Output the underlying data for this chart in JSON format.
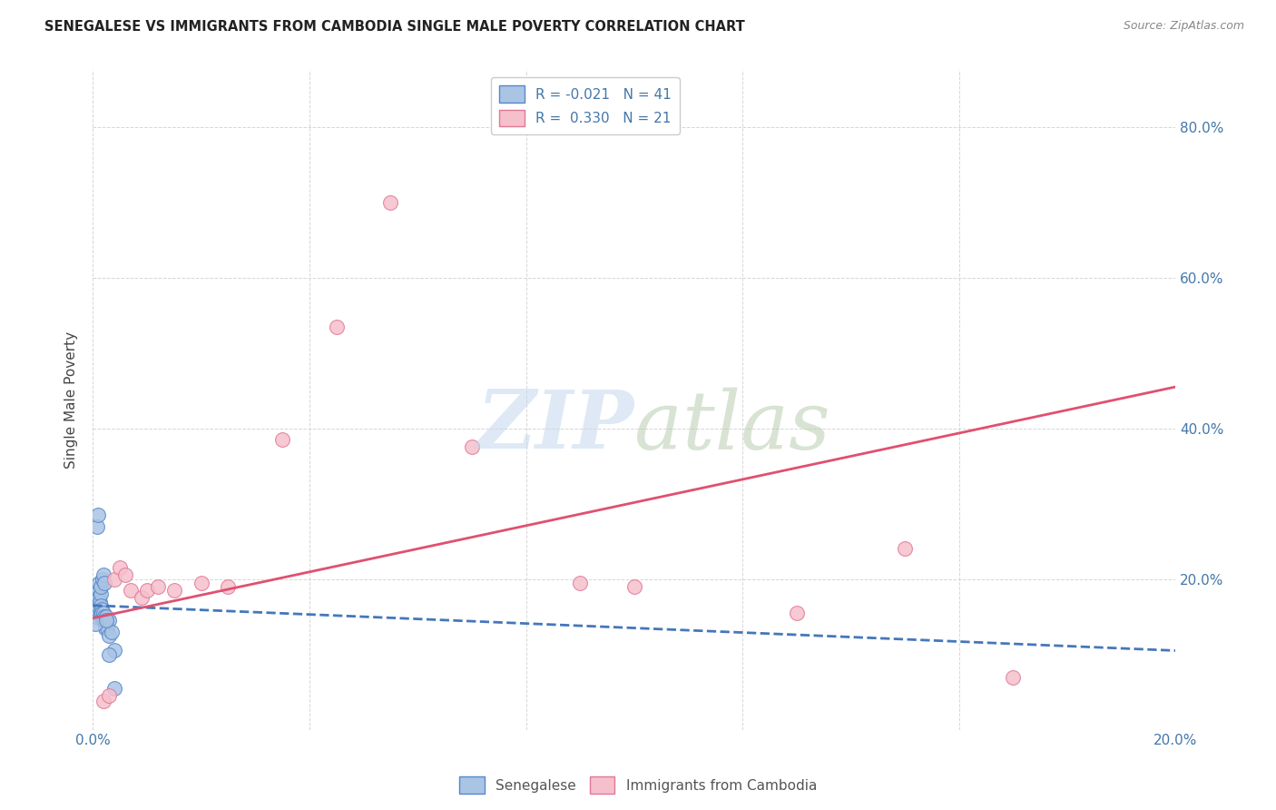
{
  "title": "SENEGALESE VS IMMIGRANTS FROM CAMBODIA SINGLE MALE POVERTY CORRELATION CHART",
  "source": "Source: ZipAtlas.com",
  "ylabel": "Single Male Poverty",
  "xlim": [
    0.0,
    0.2
  ],
  "ylim": [
    0.0,
    0.875
  ],
  "background_color": "#ffffff",
  "grid_color": "#cccccc",
  "senegalese_color": "#aac4e4",
  "senegalese_edge_color": "#5588cc",
  "cambodia_color": "#f5c0cc",
  "cambodia_edge_color": "#e07898",
  "trend_blue_color": "#4477bb",
  "trend_pink_color": "#e05070",
  "R_senegalese": -0.021,
  "N_senegalese": 41,
  "R_cambodia": 0.33,
  "N_cambodia": 21,
  "senegalese_x": [
    0.0005,
    0.0006,
    0.0007,
    0.0008,
    0.0009,
    0.001,
    0.001,
    0.0012,
    0.0012,
    0.0013,
    0.0014,
    0.0015,
    0.0015,
    0.0016,
    0.0017,
    0.0018,
    0.0019,
    0.002,
    0.002,
    0.0021,
    0.0022,
    0.0023,
    0.0023,
    0.0024,
    0.0025,
    0.0026,
    0.003,
    0.003,
    0.0035,
    0.004,
    0.0005,
    0.0008,
    0.001,
    0.0012,
    0.0015,
    0.0018,
    0.002,
    0.0022,
    0.0025,
    0.003,
    0.004
  ],
  "senegalese_y": [
    0.155,
    0.165,
    0.15,
    0.16,
    0.17,
    0.175,
    0.165,
    0.185,
    0.175,
    0.17,
    0.18,
    0.165,
    0.155,
    0.16,
    0.155,
    0.145,
    0.15,
    0.155,
    0.145,
    0.15,
    0.145,
    0.14,
    0.135,
    0.15,
    0.14,
    0.135,
    0.145,
    0.125,
    0.13,
    0.105,
    0.14,
    0.27,
    0.285,
    0.195,
    0.19,
    0.2,
    0.205,
    0.195,
    0.145,
    0.1,
    0.055
  ],
  "cambodia_x": [
    0.002,
    0.003,
    0.004,
    0.005,
    0.006,
    0.007,
    0.009,
    0.01,
    0.012,
    0.015,
    0.02,
    0.025,
    0.035,
    0.045,
    0.055,
    0.07,
    0.09,
    0.1,
    0.13,
    0.15,
    0.17
  ],
  "cambodia_y": [
    0.038,
    0.045,
    0.2,
    0.215,
    0.205,
    0.185,
    0.175,
    0.185,
    0.19,
    0.185,
    0.195,
    0.19,
    0.385,
    0.535,
    0.7,
    0.375,
    0.195,
    0.19,
    0.155,
    0.24,
    0.07
  ],
  "trend_sen_x0": 0.0,
  "trend_sen_x1": 0.2,
  "trend_sen_y0": 0.165,
  "trend_sen_y1": 0.105,
  "trend_cam_x0": 0.0,
  "trend_cam_x1": 0.2,
  "trend_cam_y0": 0.148,
  "trend_cam_y1": 0.455
}
